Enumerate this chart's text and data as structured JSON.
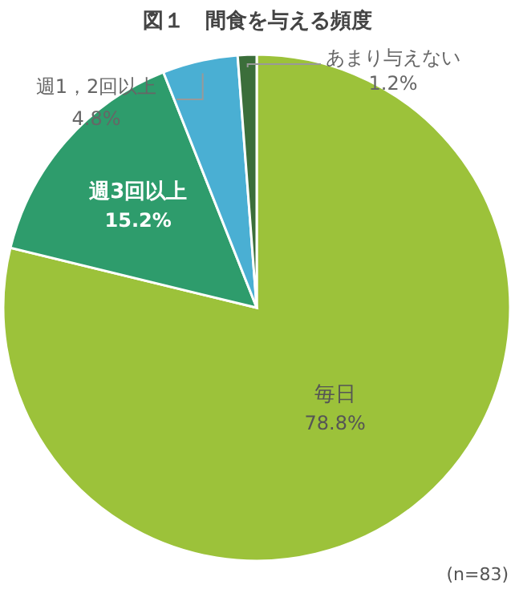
{
  "chart_data": {
    "type": "pie",
    "title": "図１　間食を与える頻度",
    "categories": [
      "毎日",
      "週3回以上",
      "週1，2回以上",
      "あまり与えない"
    ],
    "values": [
      78.8,
      15.2,
      4.8,
      1.2
    ],
    "value_labels": [
      "78.8%",
      "15.2%",
      "4.8%",
      "1.2%"
    ],
    "colors": [
      "#9cc23a",
      "#2e9c6c",
      "#4aafd3",
      "#3b6e3a"
    ],
    "legend": false,
    "annotations": [
      "(n=83)"
    ]
  }
}
